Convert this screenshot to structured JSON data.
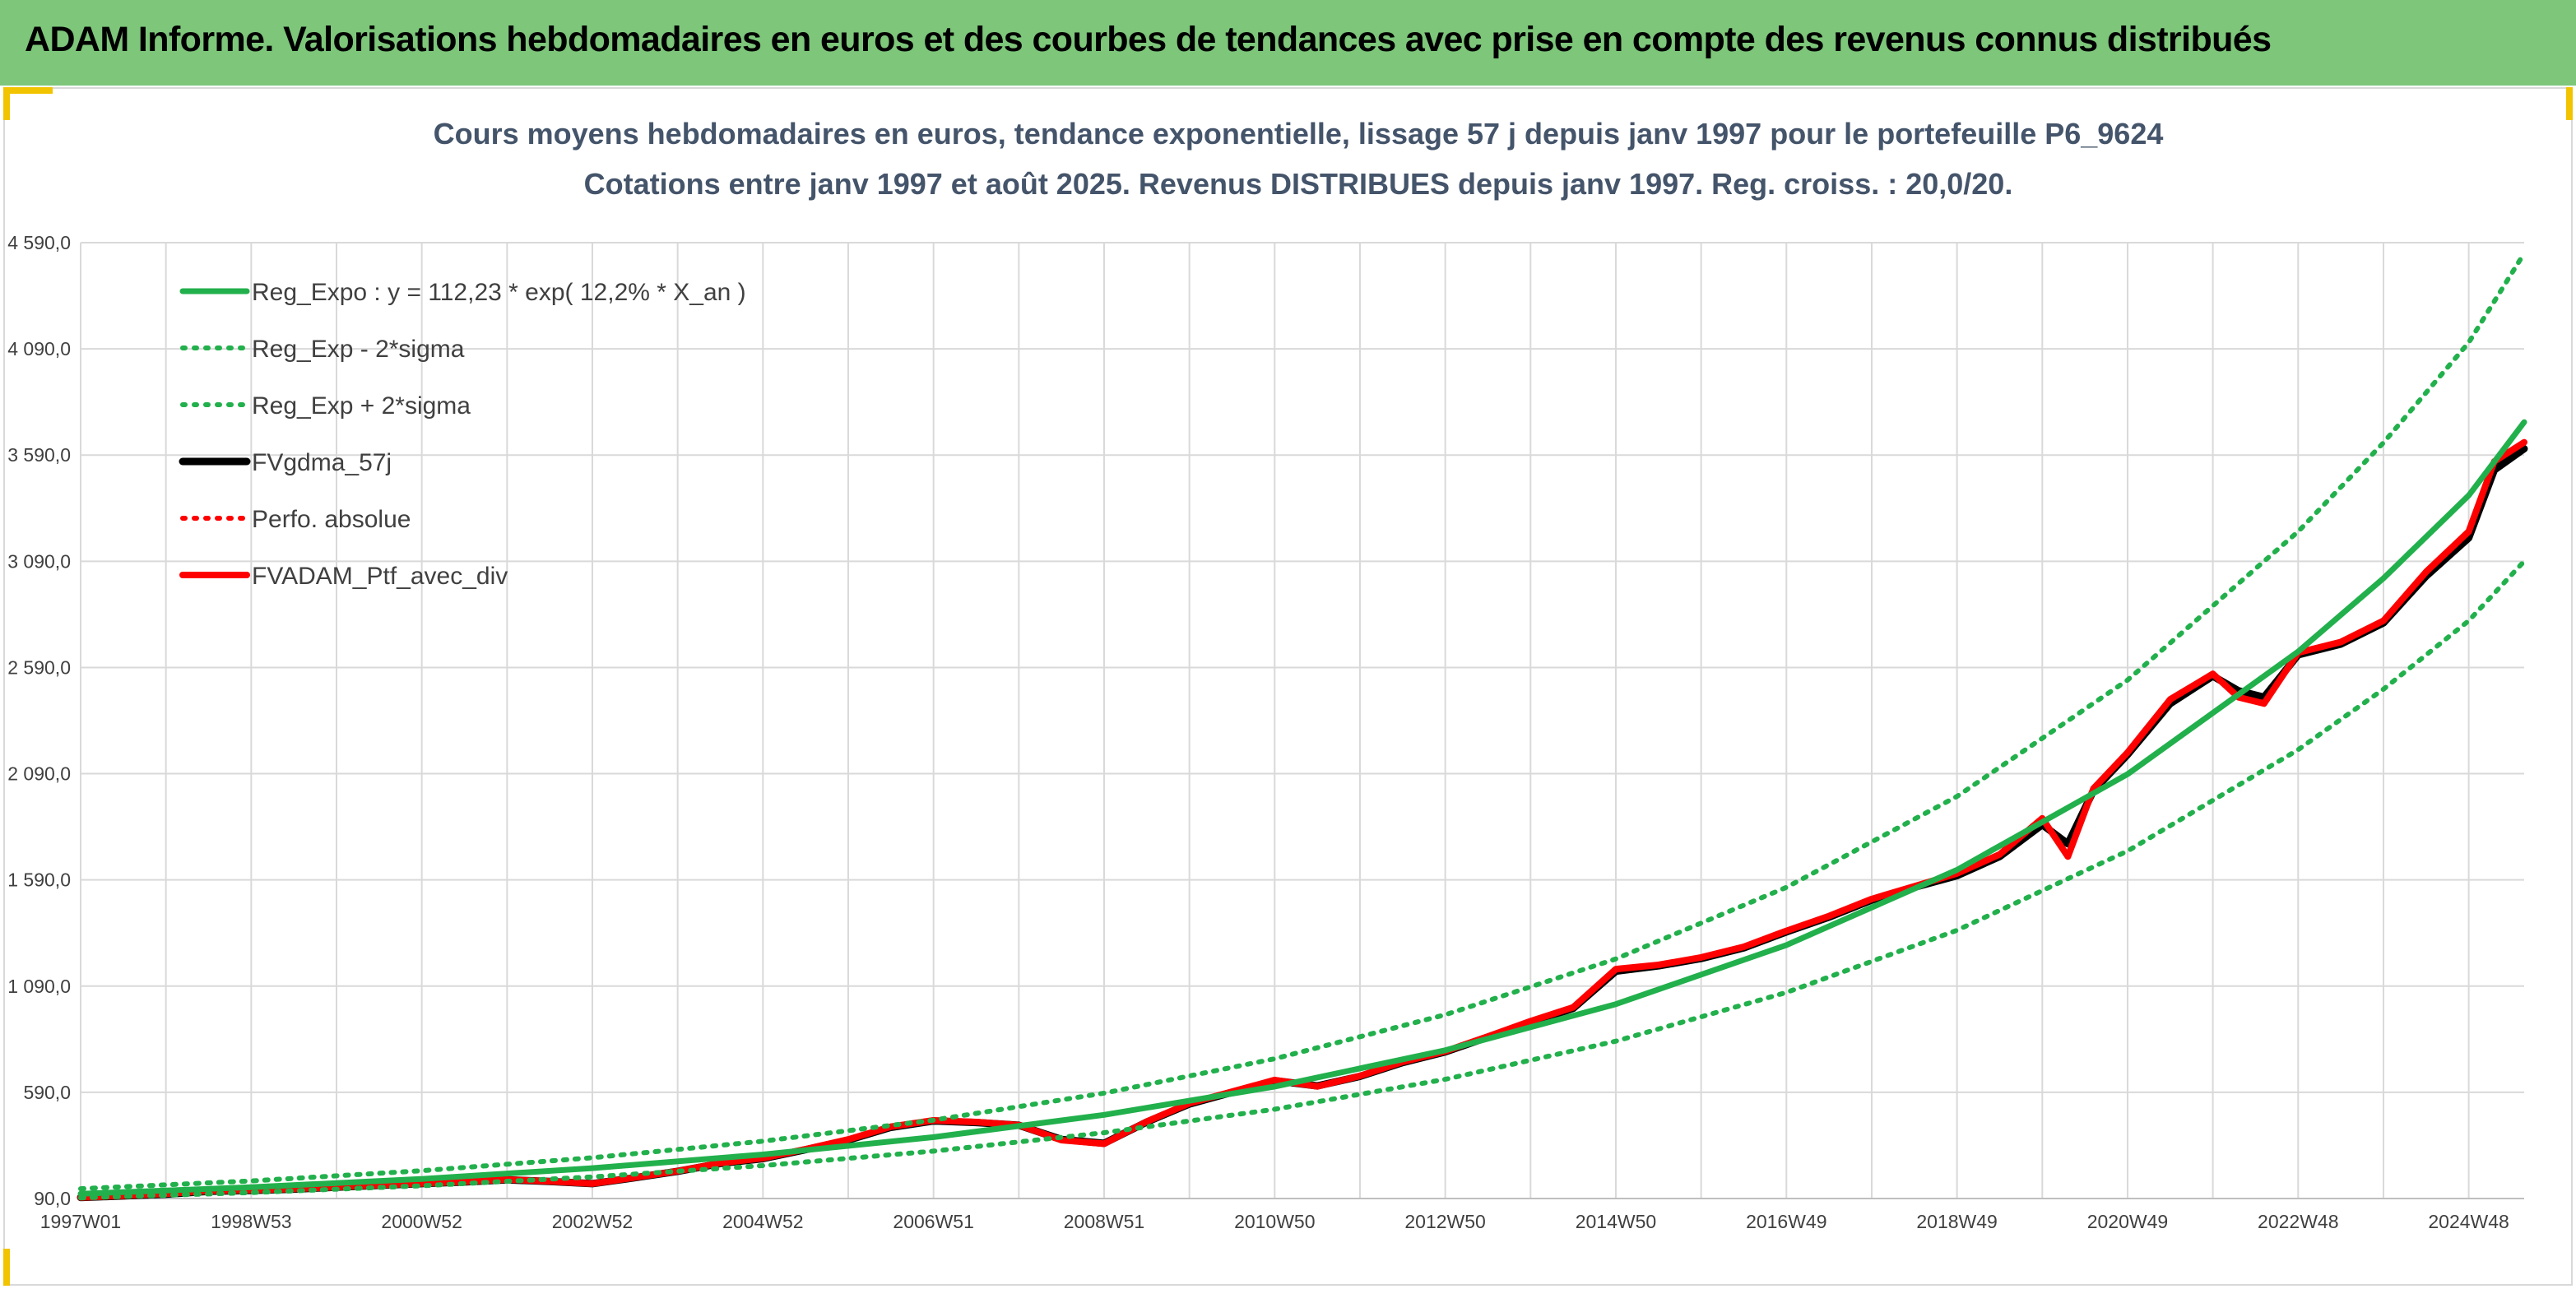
{
  "header": {
    "title": "ADAM Informe. Valorisations hebdomadaires en euros et des courbes de tendances avec prise en compte des revenus connus distribués"
  },
  "colors": {
    "header_bg": "#7dc67a",
    "accent_corner": "#f2c400",
    "reg_expo": "#22b04c",
    "fvgdma": "#000000",
    "fvadam": "#ff0000",
    "grid": "#d9d9d9"
  },
  "chart_data": {
    "type": "line",
    "title": "Cours moyens hebdomadaires en euros, tendance exponentielle, lissage 57 j depuis janv 1997 pour le portefeuille P6_9624",
    "subtitle": "Cotations entre janv 1997 et août 2025. Revenus DISTRIBUES depuis janv 1997. Reg. croiss. : 20,0/20.",
    "xlabel": "",
    "ylabel": "",
    "x_range": [
      1997.0,
      2025.65
    ],
    "ylim": [
      90,
      4590
    ],
    "y_ticks": [
      90,
      590,
      1090,
      1590,
      2090,
      2590,
      3090,
      3590,
      4090,
      4590
    ],
    "y_tick_labels": [
      "90,0",
      "590,0",
      "1 090,0",
      "1 590,0",
      "2 090,0",
      "2 590,0",
      "3 090,0",
      "3 590,0",
      "4 090,0",
      "4 590,0"
    ],
    "x_ticks": [
      1997.0,
      1998.0,
      1999.0,
      2000.0,
      2001.0,
      2002.0,
      2003.0,
      2004.0,
      2005.0,
      2006.0,
      2007.0,
      2008.0,
      2009.0,
      2010.0,
      2011.0,
      2012.0,
      2013.0,
      2014.0,
      2015.0,
      2016.0,
      2017.0,
      2018.0,
      2019.0,
      2020.0,
      2021.0,
      2022.0,
      2023.0,
      2024.0,
      2025.0
    ],
    "x_tick_labels": [
      "1997W01",
      "",
      "1998W53",
      "",
      "2000W52",
      "",
      "2002W52",
      "",
      "2004W52",
      "",
      "2006W51",
      "",
      "2008W51",
      "",
      "2010W50",
      "",
      "2012W50",
      "",
      "2014W50",
      "",
      "2016W49",
      "",
      "2018W49",
      "",
      "2020W49",
      "",
      "2022W48",
      "",
      "2024W48"
    ],
    "grid": true,
    "legend_position": "top-left",
    "legend": [
      {
        "label": "Reg_Expo : y = 112,23 * exp( 12,2% *  X_an )",
        "color": "#22b04c",
        "style": "solid"
      },
      {
        "label": "Reg_Exp - 2*sigma",
        "color": "#22b04c",
        "style": "dotted"
      },
      {
        "label": "Reg_Exp + 2*sigma",
        "color": "#22b04c",
        "style": "dotted"
      },
      {
        "label": "FVgdma_57j",
        "color": "#000000",
        "style": "solid"
      },
      {
        "label": "Perfo. absolue",
        "color": "#ff0000",
        "style": "dotted"
      },
      {
        "label": "FVADAM_Ptf_avec_div",
        "color": "#ff0000",
        "style": "solid"
      }
    ],
    "series": [
      {
        "name": "Reg_Expo : y = 112,23 * exp( 12,2% *  X_an )",
        "x": [
          1997.0,
          1999.0,
          2001.0,
          2003.0,
          2005.0,
          2007.0,
          2009.0,
          2011.0,
          2013.0,
          2015.0,
          2017.0,
          2019.0,
          2021.0,
          2023.0,
          2024.0,
          2025.0,
          2025.65
        ],
        "values": [
          112,
          143,
          182,
          233,
          297,
          379,
          484,
          617,
          788,
          1005,
          1283,
          1637,
          2088,
          2665,
          3010,
          3400,
          3745
        ]
      },
      {
        "name": "Reg_Exp - 2*sigma",
        "x": [
          1997.0,
          1999.0,
          2001.0,
          2003.0,
          2005.0,
          2007.0,
          2009.0,
          2011.0,
          2013.0,
          2015.0,
          2017.0,
          2019.0,
          2021.0,
          2023.0,
          2024.0,
          2025.0,
          2025.65
        ],
        "values": [
          93,
          118,
          150,
          192,
          245,
          313,
          400,
          510,
          651,
          831,
          1060,
          1353,
          1726,
          2203,
          2488,
          2810,
          3090
        ]
      },
      {
        "name": "Reg_Exp + 2*sigma",
        "x": [
          1997.0,
          1999.0,
          2001.0,
          2003.0,
          2005.0,
          2007.0,
          2009.0,
          2011.0,
          2013.0,
          2015.0,
          2017.0,
          2019.0,
          2021.0,
          2023.0,
          2024.0,
          2025.0,
          2025.65
        ],
        "values": [
          136,
          173,
          221,
          282,
          360,
          459,
          586,
          748,
          955,
          1218,
          1555,
          1983,
          2531,
          3230,
          3648,
          4120,
          4540
        ]
      },
      {
        "name": "FVgdma_57j",
        "x": [
          1997.0,
          1997.5,
          1998.0,
          1998.5,
          1999.0,
          1999.5,
          2000.0,
          2000.5,
          2001.0,
          2001.5,
          2002.0,
          2002.5,
          2003.0,
          2003.5,
          2004.0,
          2004.5,
          2005.0,
          2005.5,
          2006.0,
          2006.5,
          2007.0,
          2007.5,
          2008.0,
          2008.5,
          2009.0,
          2009.5,
          2010.0,
          2010.5,
          2011.0,
          2011.5,
          2012.0,
          2012.5,
          2013.0,
          2013.5,
          2014.0,
          2014.5,
          2015.0,
          2015.5,
          2016.0,
          2016.5,
          2017.0,
          2017.5,
          2018.0,
          2018.5,
          2019.0,
          2019.5,
          2020.0,
          2020.3,
          2020.6,
          2021.0,
          2021.5,
          2022.0,
          2022.3,
          2022.6,
          2023.0,
          2023.5,
          2024.0,
          2024.5,
          2025.0,
          2025.3,
          2025.65
        ],
        "values": [
          95,
          102,
          110,
          124,
          128,
          134,
          143,
          152,
          160,
          168,
          178,
          170,
          160,
          188,
          218,
          255,
          278,
          320,
          365,
          425,
          455,
          448,
          435,
          368,
          350,
          450,
          535,
          590,
          645,
          620,
          665,
          730,
          780,
          850,
          920,
          985,
          1160,
          1185,
          1220,
          1270,
          1345,
          1415,
          1495,
          1555,
          1610,
          1700,
          1850,
          1760,
          2010,
          2180,
          2420,
          2550,
          2480,
          2450,
          2650,
          2700,
          2800,
          3020,
          3200,
          3520,
          3620
        ]
      },
      {
        "name": "Perfo. absolue",
        "x": [
          1997.0,
          1997.5,
          1998.0,
          1998.5,
          1999.0,
          1999.5,
          2000.0,
          2000.5,
          2001.0,
          2001.5,
          2002.0,
          2002.5,
          2003.0,
          2003.5,
          2004.0,
          2004.5,
          2005.0,
          2005.5,
          2006.0,
          2006.5,
          2007.0,
          2007.5,
          2008.0,
          2008.5,
          2009.0,
          2009.5,
          2010.0,
          2010.5,
          2011.0,
          2011.5,
          2012.0,
          2012.5,
          2013.0,
          2013.5,
          2014.0,
          2014.5,
          2015.0,
          2015.5,
          2016.0,
          2016.5,
          2017.0,
          2017.5,
          2018.0,
          2018.5,
          2019.0,
          2019.5,
          2020.0,
          2020.3,
          2020.6,
          2021.0,
          2021.5,
          2022.0,
          2022.3,
          2022.6,
          2023.0,
          2023.5,
          2024.0,
          2024.5,
          2025.0,
          2025.3,
          2025.65
        ],
        "values": [
          95,
          103,
          112,
          126,
          129,
          135,
          144,
          153,
          161,
          169,
          179,
          171,
          160,
          189,
          219,
          257,
          280,
          322,
          368,
          428,
          458,
          450,
          436,
          365,
          348,
          452,
          538,
          593,
          648,
          618,
          667,
          733,
          783,
          853,
          925,
          990,
          1170,
          1190,
          1225,
          1275,
          1350,
          1420,
          1500,
          1560,
          1620,
          1710,
          1880,
          1700,
          2020,
          2190,
          2440,
          2560,
          2450,
          2420,
          2660,
          2710,
          2810,
          3040,
          3230,
          3560,
          3650
        ]
      },
      {
        "name": "FVADAM_Ptf_avec_div",
        "x": [
          1997.0,
          1997.5,
          1998.0,
          1998.5,
          1999.0,
          1999.5,
          2000.0,
          2000.5,
          2001.0,
          2001.5,
          2002.0,
          2002.5,
          2003.0,
          2003.5,
          2004.0,
          2004.5,
          2005.0,
          2005.5,
          2006.0,
          2006.5,
          2007.0,
          2007.5,
          2008.0,
          2008.5,
          2009.0,
          2009.5,
          2010.0,
          2010.5,
          2011.0,
          2011.5,
          2012.0,
          2012.5,
          2013.0,
          2013.5,
          2014.0,
          2014.5,
          2015.0,
          2015.5,
          2016.0,
          2016.5,
          2017.0,
          2017.5,
          2018.0,
          2018.5,
          2019.0,
          2019.5,
          2020.0,
          2020.3,
          2020.6,
          2021.0,
          2021.5,
          2022.0,
          2022.3,
          2022.6,
          2023.0,
          2023.5,
          2024.0,
          2024.5,
          2025.0,
          2025.3,
          2025.65
        ],
        "values": [
          95,
          103,
          112,
          126,
          129,
          135,
          144,
          153,
          161,
          169,
          179,
          171,
          160,
          189,
          219,
          257,
          280,
          322,
          368,
          428,
          458,
          450,
          436,
          365,
          348,
          452,
          538,
          593,
          648,
          618,
          667,
          733,
          783,
          853,
          925,
          990,
          1170,
          1190,
          1225,
          1275,
          1350,
          1420,
          1500,
          1560,
          1620,
          1710,
          1880,
          1700,
          2020,
          2190,
          2440,
          2560,
          2450,
          2420,
          2660,
          2710,
          2810,
          3040,
          3230,
          3560,
          3650
        ]
      }
    ]
  }
}
